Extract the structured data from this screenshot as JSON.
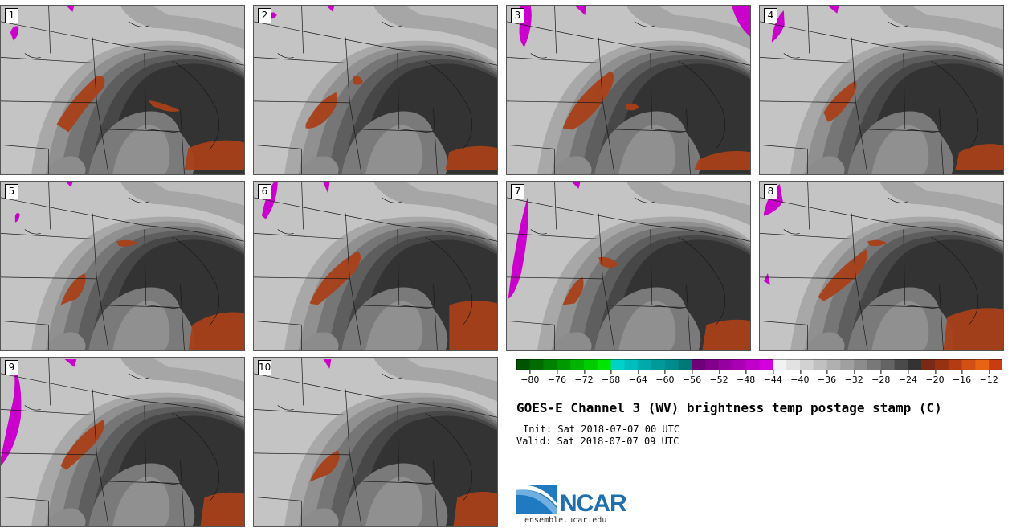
{
  "members": [
    "1",
    "2",
    "3",
    "4",
    "5",
    "6",
    "7",
    "8",
    "9",
    "10"
  ],
  "colorbar": {
    "tick_labels": [
      "−80",
      "−76",
      "−72",
      "−68",
      "−64",
      "−60",
      "−56",
      "−52",
      "−48",
      "−44",
      "−40",
      "−36",
      "−32",
      "−28",
      "−24",
      "−20",
      "−16",
      "−12"
    ],
    "range": [
      -82,
      -10
    ],
    "bins": [
      {
        "from": -82,
        "to": -80,
        "color": "#005400"
      },
      {
        "from": -80,
        "to": -78,
        "color": "#006b00"
      },
      {
        "from": -78,
        "to": -76,
        "color": "#008200"
      },
      {
        "from": -76,
        "to": -74,
        "color": "#009a00"
      },
      {
        "from": -74,
        "to": -72,
        "color": "#00b400"
      },
      {
        "from": -72,
        "to": -70,
        "color": "#00cc00"
      },
      {
        "from": -70,
        "to": -68,
        "color": "#00e600"
      },
      {
        "from": -68,
        "to": -66,
        "color": "#00d2c8"
      },
      {
        "from": -66,
        "to": -64,
        "color": "#00bebe"
      },
      {
        "from": -64,
        "to": -62,
        "color": "#00aaaa"
      },
      {
        "from": -62,
        "to": -60,
        "color": "#009a9a"
      },
      {
        "from": -60,
        "to": -58,
        "color": "#008c8c"
      },
      {
        "from": -58,
        "to": -56,
        "color": "#007878"
      },
      {
        "from": -56,
        "to": -54,
        "color": "#6e0078"
      },
      {
        "from": -54,
        "to": -52,
        "color": "#82008c"
      },
      {
        "from": -52,
        "to": -50,
        "color": "#9600a0"
      },
      {
        "from": -50,
        "to": -48,
        "color": "#aa00b4"
      },
      {
        "from": -48,
        "to": -46,
        "color": "#be00c8"
      },
      {
        "from": -46,
        "to": -44,
        "color": "#d200dc"
      },
      {
        "from": -44,
        "to": -42,
        "color": "#f2f2f2"
      },
      {
        "from": -42,
        "to": -40,
        "color": "#e2e2e2"
      },
      {
        "from": -40,
        "to": -38,
        "color": "#d2d2d2"
      },
      {
        "from": -38,
        "to": -36,
        "color": "#c0c0c0"
      },
      {
        "from": -36,
        "to": -34,
        "color": "#b0b0b0"
      },
      {
        "from": -34,
        "to": -32,
        "color": "#a0a0a0"
      },
      {
        "from": -32,
        "to": -30,
        "color": "#8c8c8c"
      },
      {
        "from": -30,
        "to": -28,
        "color": "#787878"
      },
      {
        "from": -28,
        "to": -26,
        "color": "#646464"
      },
      {
        "from": -26,
        "to": -24,
        "color": "#4a4a4a"
      },
      {
        "from": -24,
        "to": -22,
        "color": "#333333"
      },
      {
        "from": -22,
        "to": -20,
        "color": "#7a2a14"
      },
      {
        "from": -20,
        "to": -18,
        "color": "#963214"
      },
      {
        "from": -18,
        "to": -16,
        "color": "#b43c14"
      },
      {
        "from": -16,
        "to": -14,
        "color": "#d25014"
      },
      {
        "from": -14,
        "to": -12,
        "color": "#e66414"
      },
      {
        "from": -12,
        "to": -10,
        "color": "#c83c10"
      }
    ]
  },
  "title": "GOES-E Channel 3 (WV) brightness temp postage stamp (C)",
  "init": "Init: Sat 2018-07-07 00 UTC",
  "valid": "Valid: Sat 2018-07-07 09 UTC",
  "logo": {
    "text": "NCAR",
    "url": "ensemble.ucar.edu"
  },
  "colors": {
    "panel_bg": "#8a8a8a",
    "dark_core": "#333333",
    "warm": "#b43c14",
    "cold": "#cc00cc"
  }
}
